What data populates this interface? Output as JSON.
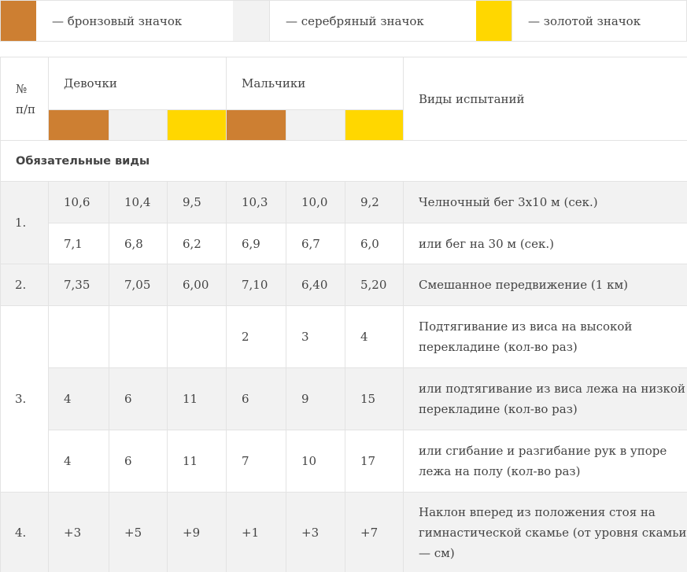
{
  "legend": {
    "bronze_label": "— бронзовый значок",
    "silver_label": "— серебряный значок",
    "gold_label": "— золотой значок",
    "colors": {
      "bronze": "#cd7f32",
      "silver": "#f2f2f2",
      "gold": "#ffd700"
    }
  },
  "table": {
    "header": {
      "num_label": "№ п/п",
      "girls": "Девочки",
      "boys": "Мальчики",
      "tests": "Виды испытаний"
    },
    "section_title": "Обязательные виды",
    "groups": [
      {
        "num": "1.",
        "rows": [
          {
            "values": [
              "10,6",
              "10,4",
              "9,5",
              "10,3",
              "10,0",
              "9,2"
            ],
            "test": "Челночный бег 3х10 м (сек.)"
          },
          {
            "values": [
              "7,1",
              "6,8",
              "6,2",
              "6,9",
              "6,7",
              "6,0"
            ],
            "test": "или бег на 30 м (сек.)"
          }
        ]
      },
      {
        "num": "2.",
        "rows": [
          {
            "values": [
              "7,35",
              "7,05",
              "6,00",
              "7,10",
              "6,40",
              "5,20"
            ],
            "test": "Смешанное передвижение (1 км)"
          }
        ]
      },
      {
        "num": "3.",
        "rows": [
          {
            "values": [
              "",
              "",
              "",
              "2",
              "3",
              "4"
            ],
            "test": "Подтягивание из виса на высокой перекладине (кол-во раз)"
          },
          {
            "values": [
              "4",
              "6",
              "11",
              "6",
              "9",
              "15"
            ],
            "test": "или подтягивание из виса лежа на низкой перекладине (кол-во раз)"
          },
          {
            "values": [
              "4",
              "6",
              "11",
              "7",
              "10",
              "17"
            ],
            "test": "или сгибание и разгибание рук в упоре лежа на полу (кол-во раз)"
          }
        ]
      },
      {
        "num": "4.",
        "rows": [
          {
            "values": [
              "+3",
              "+5",
              "+9",
              "+1",
              "+3",
              "+7"
            ],
            "test": "Наклон вперед из положения стоя на гимнастической скамье (от уровня скамьи — см)"
          }
        ]
      }
    ]
  }
}
